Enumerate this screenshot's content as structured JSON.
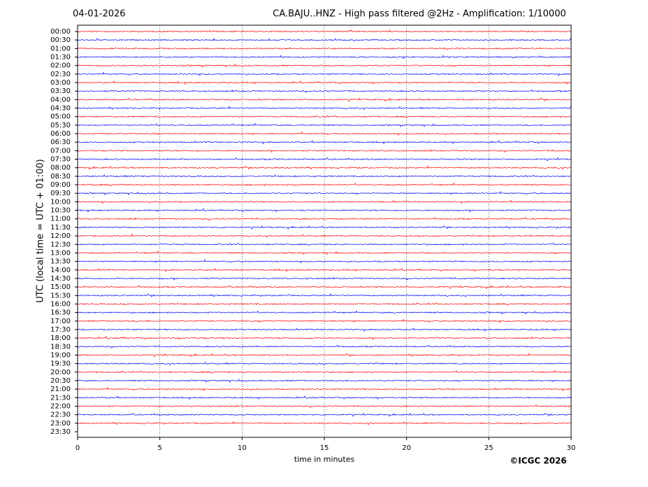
{
  "chart_data": {
    "type": "helicorder",
    "date": "04-01-2026",
    "title": "CA.BAJU..HNZ - High pass filtered @2Hz - Amplification: 1/10000",
    "ylabel": "UTC (local time = UTC + 01:00)",
    "xlabel": "time in minutes",
    "credit": "©ICGC 2026",
    "categories": [
      "00:00",
      "00:30",
      "01:00",
      "01:30",
      "02:00",
      "02:30",
      "03:00",
      "03:30",
      "04:00",
      "04:30",
      "05:00",
      "05:30",
      "06:00",
      "06:30",
      "07:00",
      "07:30",
      "08:00",
      "08:30",
      "09:00",
      "09:30",
      "10:00",
      "10:30",
      "11:00",
      "11:30",
      "12:00",
      "12:30",
      "13:00",
      "13:30",
      "14:00",
      "14:30",
      "15:00",
      "15:30",
      "16:00",
      "16:30",
      "17:00",
      "17:30",
      "18:00",
      "18:30",
      "19:00",
      "19:30",
      "20:00",
      "20:30",
      "21:00",
      "21:30",
      "22:00",
      "22:30",
      "23:00",
      "23:30"
    ],
    "trace_colors": [
      "#ff0000",
      "#0000ff"
    ],
    "xlim": [
      0,
      30
    ],
    "xticks": [
      0,
      5,
      10,
      15,
      20,
      25,
      30
    ],
    "grid": true
  }
}
